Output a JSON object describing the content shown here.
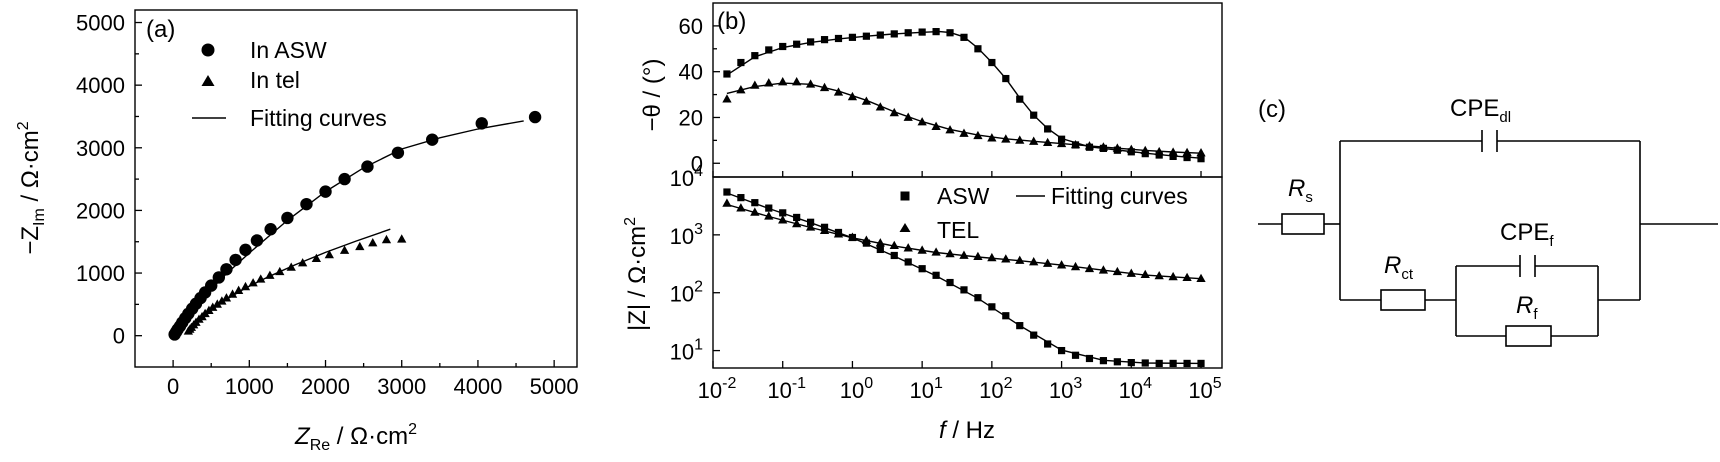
{
  "figure": {
    "panels": [
      "(a)",
      "(b)",
      "(c)"
    ]
  },
  "chart_data": [
    {
      "id": "a",
      "type": "scatter",
      "panel_label": "(a)",
      "xlabel": {
        "symbol": "Z",
        "sub": "Re",
        "unit": " / Ω·cm",
        "sup": "2"
      },
      "ylabel": {
        "symbol": "−Z",
        "sub": "Im",
        "unit": " / Ω·cm",
        "sup": "2"
      },
      "xlim": [
        -500,
        5300
      ],
      "ylim": [
        -500,
        5200
      ],
      "xticks": [
        0,
        1000,
        2000,
        3000,
        4000,
        5000
      ],
      "yticks": [
        0,
        1000,
        2000,
        3000,
        4000,
        5000
      ],
      "legend": [
        "In ASW",
        "In tel",
        "Fitting curves"
      ],
      "series": [
        {
          "name": "In ASW",
          "marker": "circle",
          "x": [
            20,
            40,
            60,
            90,
            120,
            160,
            200,
            250,
            300,
            360,
            420,
            500,
            600,
            700,
            820,
            950,
            1100,
            1280,
            1500,
            1750,
            2000,
            2250,
            2550,
            2950,
            3400,
            4050,
            4750
          ],
          "y": [
            20,
            60,
            100,
            150,
            210,
            280,
            350,
            430,
            510,
            600,
            690,
            800,
            930,
            1060,
            1210,
            1370,
            1520,
            1700,
            1880,
            2100,
            2300,
            2500,
            2700,
            2920,
            3130,
            3390,
            3490
          ]
        },
        {
          "name": "In tel",
          "marker": "triangle",
          "x": [
            200,
            220,
            240,
            270,
            300,
            340,
            380,
            420,
            470,
            520,
            580,
            640,
            700,
            780,
            860,
            950,
            1050,
            1150,
            1270,
            1400,
            1550,
            1700,
            1880,
            2050,
            2250,
            2450,
            2620,
            2800,
            3000
          ],
          "y": [
            70,
            100,
            130,
            170,
            210,
            260,
            300,
            350,
            400,
            450,
            500,
            550,
            600,
            660,
            720,
            780,
            840,
            900,
            960,
            1020,
            1090,
            1160,
            1230,
            1290,
            1360,
            1420,
            1480,
            1530,
            1540
          ]
        }
      ],
      "fits": [
        {
          "name": "ASW fit",
          "x": [
            0,
            100,
            200,
            400,
            700,
            1000,
            1500,
            2000,
            2500,
            3000,
            3500,
            4000,
            4600
          ],
          "y": [
            0,
            170,
            340,
            620,
            990,
            1320,
            1840,
            2300,
            2680,
            2980,
            3160,
            3300,
            3430
          ]
        },
        {
          "name": "tel fit",
          "x": [
            180,
            250,
            350,
            500,
            700,
            950,
            1250,
            1600,
            2000,
            2400,
            2850
          ],
          "y": [
            60,
            150,
            260,
            410,
            580,
            760,
            940,
            1130,
            1330,
            1510,
            1700
          ]
        }
      ]
    },
    {
      "id": "b-top",
      "type": "scatter",
      "panel_label": "(b)",
      "ylabel": {
        "text": "−θ / (°)"
      },
      "xscale": "log",
      "xlim": [
        0.01,
        200000
      ],
      "ylim": [
        -6,
        70
      ],
      "yticks": [
        0,
        20,
        40,
        60
      ],
      "series": [
        {
          "name": "ASW",
          "marker": "square",
          "x": [
            0.01585,
            0.02512,
            0.03981,
            0.0631,
            0.1,
            0.1585,
            0.2512,
            0.3981,
            0.631,
            1,
            1.585,
            2.512,
            3.981,
            6.31,
            10,
            15.85,
            25.12,
            39.81,
            63.1,
            100,
            158.5,
            251.2,
            398.1,
            631,
            1000,
            1585,
            2512,
            3981,
            6310,
            10000,
            15850,
            25120,
            39810,
            63100,
            100000
          ],
          "y": [
            39,
            44,
            47,
            49.5,
            51,
            52,
            53,
            54,
            54.5,
            55,
            55.5,
            56,
            56.5,
            57,
            57.3,
            57.5,
            57,
            55,
            50,
            44,
            37,
            28,
            21,
            15,
            10.5,
            8,
            7,
            6.5,
            5.7,
            5,
            4.2,
            3.6,
            3,
            2.5,
            2
          ]
        },
        {
          "name": "TEL",
          "marker": "triangle",
          "x": [
            0.01585,
            0.02512,
            0.03981,
            0.0631,
            0.1,
            0.1585,
            0.2512,
            0.3981,
            0.631,
            1,
            1.585,
            2.512,
            3.981,
            6.31,
            10,
            15.85,
            25.12,
            39.81,
            63.1,
            100,
            158.5,
            251.2,
            398.1,
            631,
            1000,
            1585,
            2512,
            3981,
            6310,
            10000,
            15850,
            25120,
            39810,
            63100,
            100000
          ],
          "y": [
            28,
            32,
            34,
            35,
            35.5,
            35.5,
            34.5,
            33,
            31,
            29,
            27,
            24.5,
            22,
            20,
            18,
            16,
            14.5,
            13,
            12,
            11,
            10.5,
            10,
            9.5,
            9,
            8.5,
            8,
            7.5,
            7,
            6.5,
            6,
            5.5,
            5,
            4.8,
            4.6,
            4.5
          ]
        }
      ],
      "fits": [
        {
          "name": "ASW fit",
          "x": [
            0.01585,
            0.03981,
            0.1,
            0.2512,
            0.631,
            1.585,
            3.981,
            10,
            17.8,
            25.12,
            39.81,
            63.1,
            100,
            158.5,
            251.2,
            398.1,
            631,
            1000,
            2512,
            6310,
            15850,
            39810,
            100000
          ],
          "y": [
            38.5,
            46.5,
            50.5,
            52.8,
            54.3,
            55.5,
            56.5,
            57.2,
            57.5,
            57.1,
            55.2,
            50.3,
            44,
            37,
            28.5,
            21,
            15.2,
            10.8,
            7.2,
            5.8,
            4.4,
            3.2,
            2.2
          ]
        },
        {
          "name": "TEL fit",
          "x": [
            0.01585,
            0.03981,
            0.1,
            0.2512,
            0.631,
            1.585,
            3.981,
            10,
            25.12,
            63.1,
            158.5,
            398.1,
            1000,
            2512,
            6310,
            15850,
            39810,
            100000
          ],
          "y": [
            30.5,
            33.5,
            35,
            34.5,
            31.5,
            27.5,
            22.5,
            18.2,
            14.8,
            12.3,
            10.7,
            9.6,
            8.6,
            7.6,
            6.6,
            5.6,
            4.9,
            4.4
          ]
        }
      ]
    },
    {
      "id": "b-bottom",
      "type": "scatter",
      "xlabel": {
        "symbol": "f",
        "unit": " / Hz"
      },
      "ylabel": {
        "text": "|Z| / Ω·cm",
        "sup": "2"
      },
      "xscale": "log",
      "yscale": "log",
      "xlim": [
        0.01,
        200000
      ],
      "ylim": [
        5,
        10000
      ],
      "xtick_labels": [
        {
          "value": 0.01,
          "base": "10",
          "exp": "-2"
        },
        {
          "value": 0.1,
          "base": "10",
          "exp": "-1"
        },
        {
          "value": 1,
          "base": "10",
          "exp": "0"
        },
        {
          "value": 10,
          "base": "10",
          "exp": "1"
        },
        {
          "value": 100,
          "base": "10",
          "exp": "2"
        },
        {
          "value": 1000,
          "base": "10",
          "exp": "3"
        },
        {
          "value": 10000,
          "base": "10",
          "exp": "4"
        },
        {
          "value": 100000,
          "base": "10",
          "exp": "5"
        }
      ],
      "ytick_labels": [
        {
          "value": 10,
          "base": "10",
          "exp": "1"
        },
        {
          "value": 100,
          "base": "10",
          "exp": "2"
        },
        {
          "value": 1000,
          "base": "10",
          "exp": "3"
        },
        {
          "value": 10000,
          "base": "10",
          "exp": "4"
        }
      ],
      "legend": [
        "ASW",
        "TEL",
        "Fitting curves"
      ],
      "series": [
        {
          "name": "ASW",
          "marker": "square",
          "x": [
            0.01585,
            0.02512,
            0.03981,
            0.0631,
            0.1,
            0.1585,
            0.2512,
            0.3981,
            0.631,
            1,
            1.585,
            2.512,
            3.981,
            6.31,
            10,
            15.85,
            25.12,
            39.81,
            63.1,
            100,
            158.5,
            251.2,
            398.1,
            631,
            1000,
            1585,
            2512,
            3981,
            6310,
            10000,
            15850,
            25120,
            39810,
            63100,
            100000
          ],
          "y": [
            5500,
            4400,
            3600,
            2900,
            2400,
            2000,
            1650,
            1350,
            1100,
            900,
            720,
            560,
            440,
            340,
            260,
            200,
            150,
            112,
            82,
            57,
            40,
            27,
            18.5,
            13,
            10,
            8.3,
            7.3,
            6.7,
            6.4,
            6.2,
            6.1,
            6,
            6,
            6,
            6
          ]
        },
        {
          "name": "TEL",
          "marker": "triangle",
          "x": [
            0.01585,
            0.02512,
            0.03981,
            0.0631,
            0.1,
            0.1585,
            0.2512,
            0.3981,
            0.631,
            1,
            1.585,
            2.512,
            3.981,
            6.31,
            10,
            15.85,
            25.12,
            39.81,
            63.1,
            100,
            158.5,
            251.2,
            398.1,
            631,
            1000,
            1585,
            2512,
            3981,
            6310,
            10000,
            15850,
            25120,
            39810,
            63100,
            100000
          ],
          "y": [
            3500,
            2900,
            2450,
            2100,
            1800,
            1550,
            1350,
            1180,
            1030,
            900,
            800,
            720,
            650,
            590,
            540,
            500,
            470,
            440,
            420,
            400,
            380,
            360,
            340,
            320,
            300,
            280,
            260,
            245,
            230,
            215,
            205,
            195,
            188,
            182,
            175
          ]
        }
      ],
      "fits": [
        {
          "name": "ASW fit",
          "x": [
            0.01585,
            0.0631,
            0.2512,
            1,
            3.981,
            15.85,
            63.1,
            251.2,
            1000,
            3981,
            15850,
            100000
          ],
          "y": [
            5300,
            2850,
            1620,
            890,
            430,
            195,
            80,
            27,
            10.2,
            6.8,
            6.1,
            6
          ]
        },
        {
          "name": "TEL fit",
          "x": [
            0.01585,
            0.0631,
            0.2512,
            1,
            3.981,
            15.85,
            63.1,
            251.2,
            1000,
            3981,
            15850,
            100000
          ],
          "y": [
            3350,
            2080,
            1340,
            890,
            640,
            495,
            415,
            358,
            300,
            245,
            202,
            175
          ]
        }
      ]
    }
  ],
  "circuit": {
    "label": "(c)",
    "Rs": {
      "symbol": "R",
      "sub": "s"
    },
    "CPEdl": {
      "symbol": "CPE",
      "sub": "dl"
    },
    "Rct": {
      "symbol": "R",
      "sub": "ct"
    },
    "CPEf": {
      "symbol": "CPE",
      "sub": "f"
    },
    "Rf": {
      "symbol": "R",
      "sub": "f"
    }
  }
}
